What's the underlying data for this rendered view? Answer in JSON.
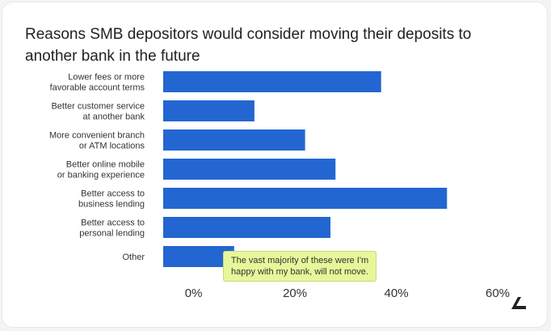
{
  "chart_data": {
    "type": "bar",
    "orientation": "horizontal",
    "title": "Reasons SMB depositors would consider moving their deposits to another bank in the future",
    "categories": [
      [
        "Lower fees or more",
        "favorable account terms"
      ],
      [
        "Better customer service",
        "at another bank"
      ],
      [
        "More convenient branch",
        "or ATM locations"
      ],
      [
        "Better online mobile",
        "or banking experience"
      ],
      [
        "Better access to",
        "business lending"
      ],
      [
        "Better access to",
        "personal lending"
      ],
      [
        "Other"
      ]
    ],
    "values": [
      37,
      12,
      22,
      28,
      50,
      27,
      8
    ],
    "xlim": [
      -6,
      60
    ],
    "ticks": [
      "0%",
      "20%",
      "40%",
      "60%"
    ],
    "tick_values": [
      0,
      20,
      40,
      60
    ],
    "bar_color": "#2366d1",
    "grid": false,
    "annotation": "The vast majority of these were I'm happy with my bank, will not move."
  },
  "annotation_color": "#e6f79a"
}
